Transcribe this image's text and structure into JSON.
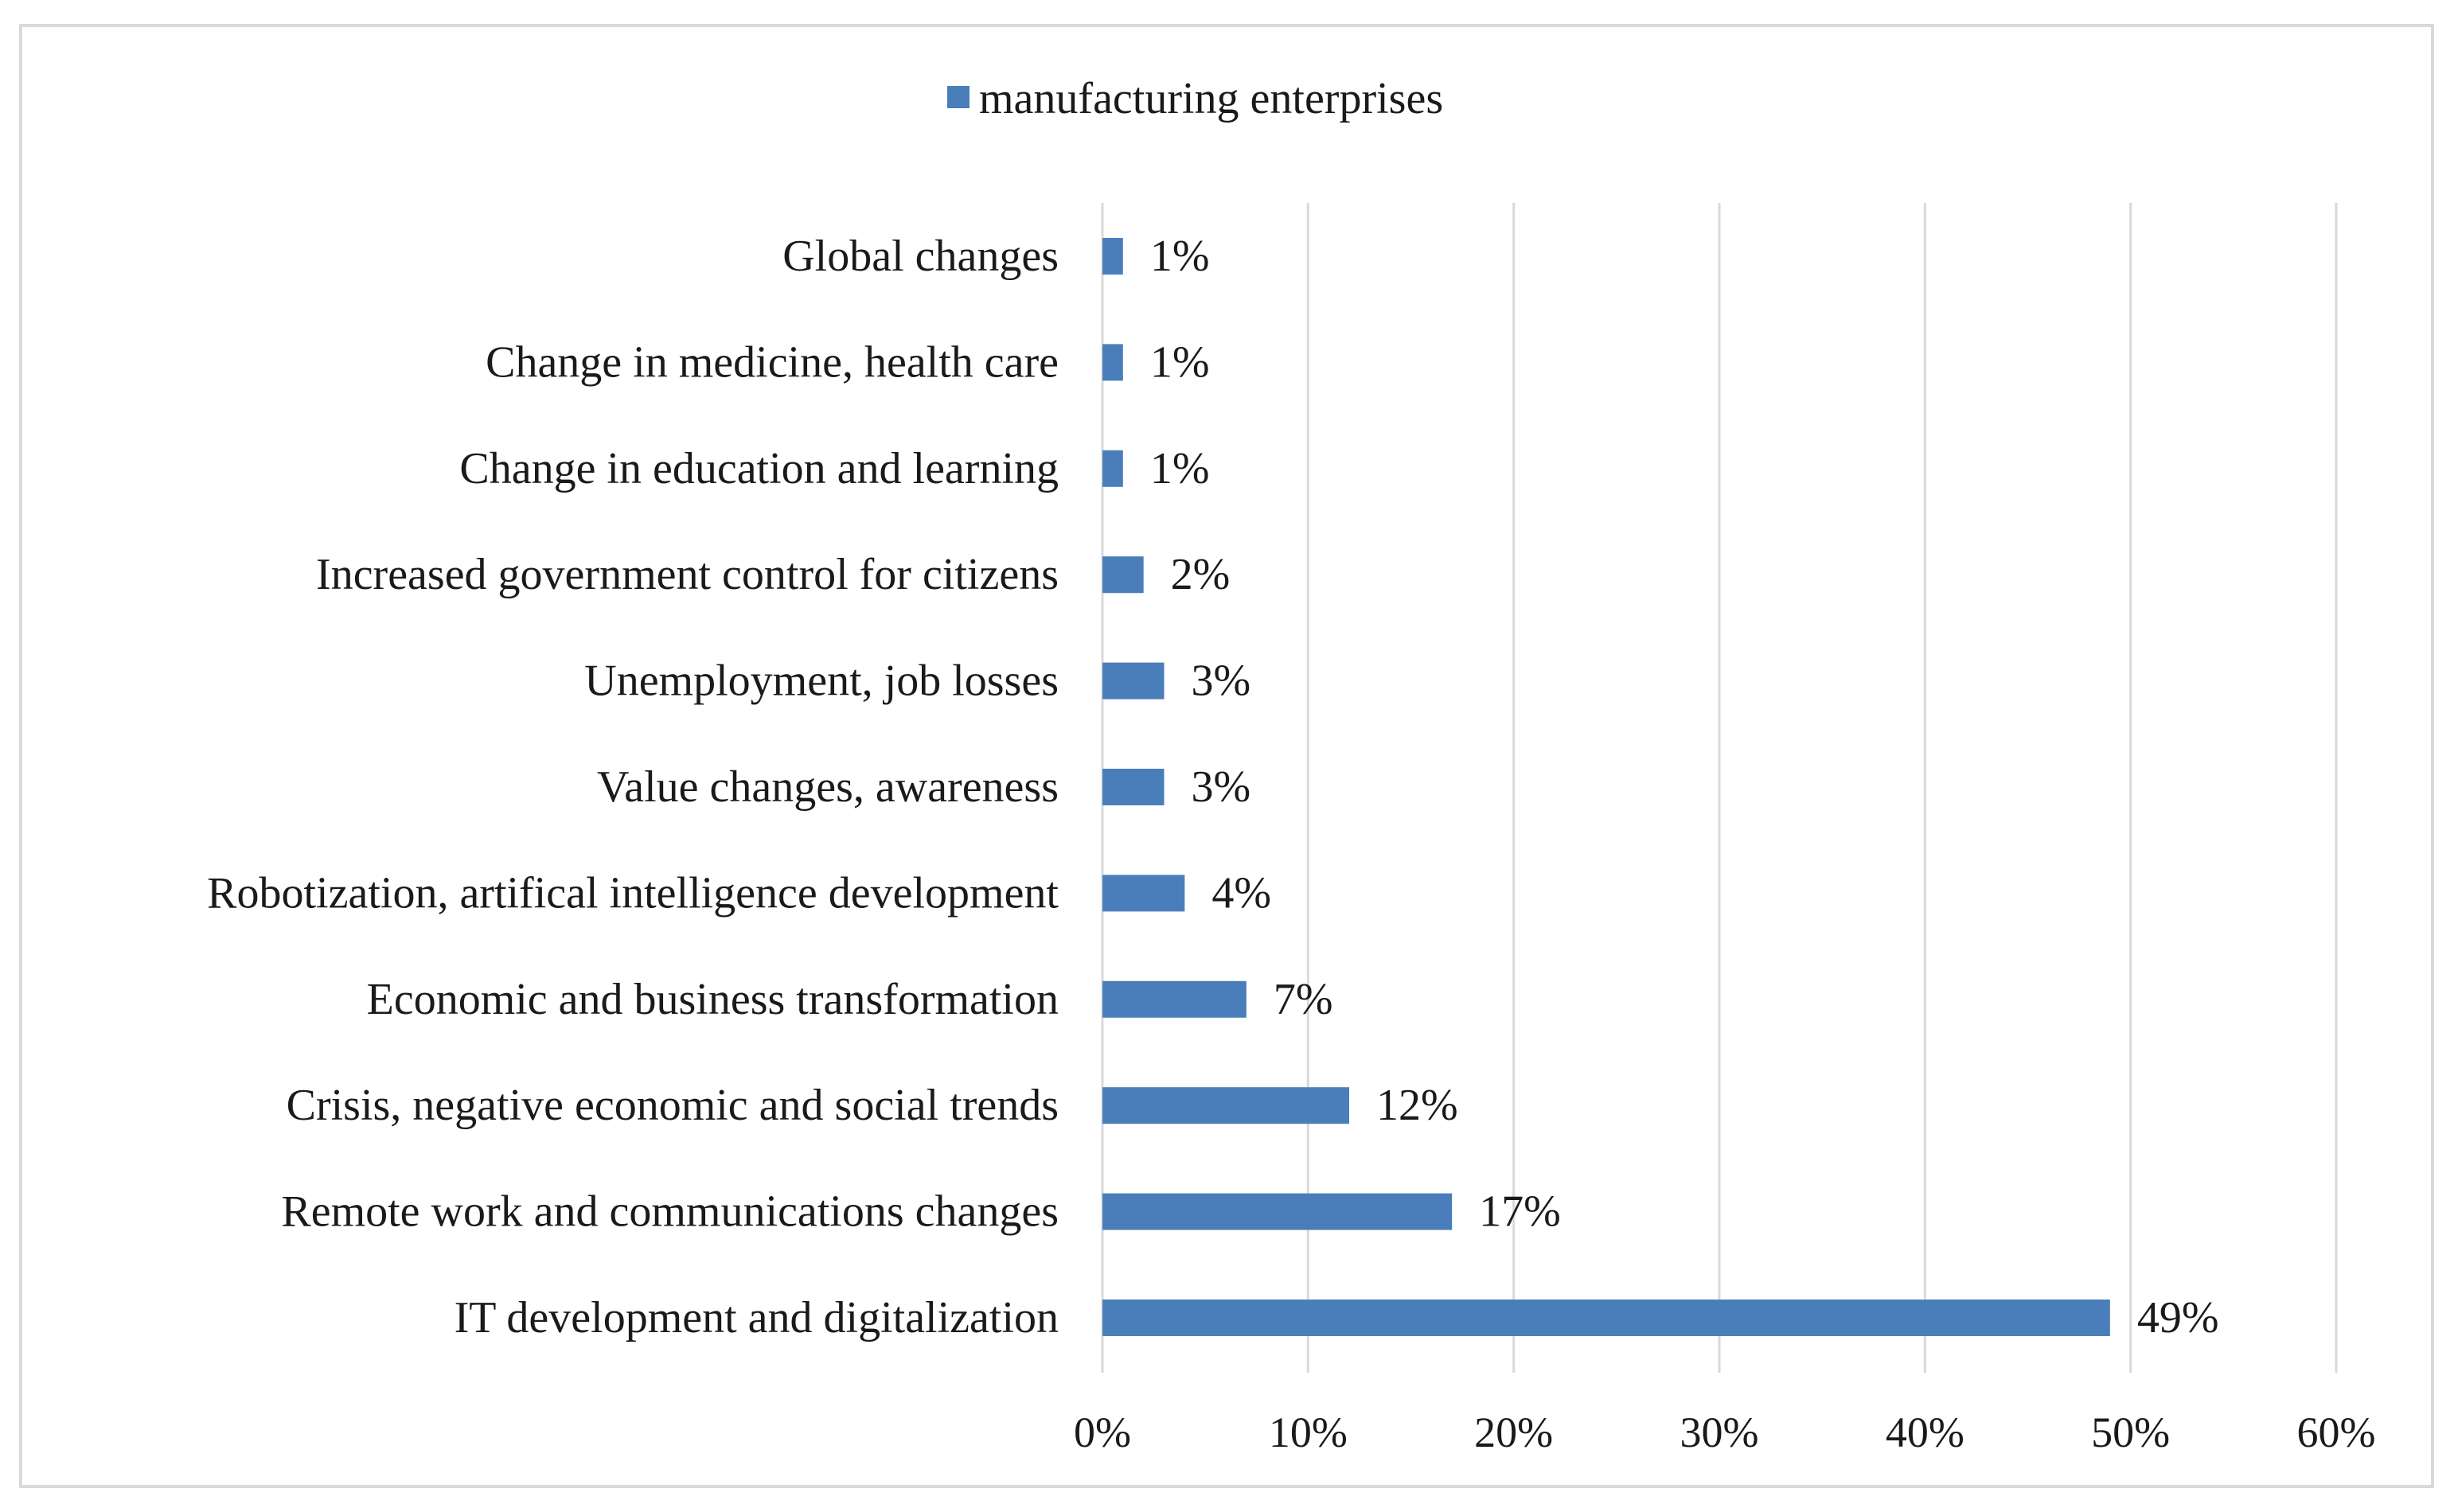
{
  "chart_data": {
    "type": "bar",
    "orientation": "horizontal",
    "categories": [
      "Global changes",
      "Change in medicine, health care",
      "Change in education and learning",
      "Increased government control for citizens",
      "Unemployment, job losses",
      "Value changes, awareness",
      "Robotization, artifical intelligence development",
      "Economic and business transformation",
      "Crisis, negative economic and social trends",
      "Remote work and communications changes",
      "IT development and digitalization"
    ],
    "series": [
      {
        "name": "manufacturing enterprises",
        "values": [
          1,
          1,
          1,
          2,
          3,
          3,
          4,
          7,
          12,
          17,
          49
        ],
        "labels": [
          "1%",
          "1%",
          "1%",
          "2%",
          "3%",
          "3%",
          "4%",
          "7%",
          "12%",
          "17%",
          "49%"
        ],
        "color": "#4a7ebb"
      }
    ],
    "xlim": [
      0,
      60
    ],
    "xticks": [
      "0%",
      "10%",
      "20%",
      "30%",
      "40%",
      "50%",
      "60%"
    ],
    "grid": "vertical",
    "legend_position": "top-center",
    "title": "",
    "xlabel": "",
    "ylabel": ""
  }
}
